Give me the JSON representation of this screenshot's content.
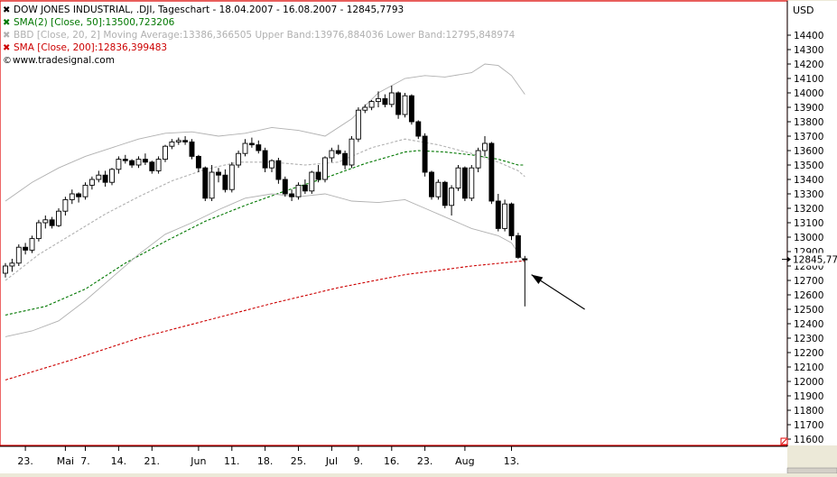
{
  "chart_data": {
    "type": "candlestick",
    "title": "DOW JONES INDUSTRIAL, .DJI, Tageschart - 18.04.2007 - 16.08.2007 - 12845,7793",
    "currency": "USD",
    "source": "www.tradesignal.com",
    "last_value_label": "12845,77",
    "y_axis": {
      "min": 11600,
      "max": 14400,
      "ticks": [
        14400,
        14300,
        14200,
        14100,
        14000,
        13900,
        13800,
        13700,
        13600,
        13500,
        13400,
        13300,
        13200,
        13100,
        13000,
        12900,
        12800,
        12700,
        12600,
        12500,
        12400,
        12300,
        12200,
        12100,
        12000,
        11900,
        11800,
        11700,
        11600
      ]
    },
    "x_axis": {
      "labels": [
        {
          "i": 3,
          "t": "23."
        },
        {
          "i": 9,
          "t": "Mai"
        },
        {
          "i": 12,
          "t": "7."
        },
        {
          "i": 17,
          "t": "14."
        },
        {
          "i": 22,
          "t": "21."
        },
        {
          "i": 29,
          "t": "Jun"
        },
        {
          "i": 34,
          "t": "11."
        },
        {
          "i": 39,
          "t": "18."
        },
        {
          "i": 44,
          "t": "25."
        },
        {
          "i": 49,
          "t": "Jul"
        },
        {
          "i": 53,
          "t": "9."
        },
        {
          "i": 58,
          "t": "16."
        },
        {
          "i": 63,
          "t": "23."
        },
        {
          "i": 69,
          "t": "Aug"
        },
        {
          "i": 76,
          "t": "13."
        }
      ]
    },
    "legend": [
      {
        "text": "DOW JONES INDUSTRIAL, .DJI, Tageschart - 18.04.2007 - 16.08.2007 - 12845,7793",
        "color": "#000000"
      },
      {
        "text": "SMA(2) [Close, 50]:13500,723206",
        "color": "#007700"
      },
      {
        "text": "BBD [Close, 20, 2] Moving Average:13386,366505 Upper Band:13976,884036 Lower Band:12795,848974",
        "color": "#b0b0b0"
      },
      {
        "text": "SMA [Close, 200]:12836,399483",
        "color": "#cc0000"
      },
      {
        "text": "www.tradesignal.com",
        "color": "#000000"
      }
    ],
    "series": [
      {
        "name": "DOW JONES INDUSTRIAL",
        "kind": "ohlc",
        "ohlc": [
          [
            12750,
            12820,
            12720,
            12800
          ],
          [
            12800,
            12850,
            12760,
            12820
          ],
          [
            12820,
            12950,
            12800,
            12930
          ],
          [
            12930,
            12960,
            12880,
            12910
          ],
          [
            12910,
            13010,
            12890,
            12990
          ],
          [
            12990,
            13120,
            12970,
            13100
          ],
          [
            13100,
            13150,
            13060,
            13120
          ],
          [
            13120,
            13140,
            13060,
            13080
          ],
          [
            13080,
            13200,
            13070,
            13180
          ],
          [
            13180,
            13280,
            13150,
            13260
          ],
          [
            13260,
            13330,
            13230,
            13300
          ],
          [
            13300,
            13310,
            13240,
            13280
          ],
          [
            13280,
            13380,
            13260,
            13360
          ],
          [
            13360,
            13420,
            13330,
            13400
          ],
          [
            13400,
            13460,
            13380,
            13430
          ],
          [
            13430,
            13460,
            13350,
            13380
          ],
          [
            13380,
            13480,
            13360,
            13470
          ],
          [
            13470,
            13560,
            13440,
            13540
          ],
          [
            13540,
            13570,
            13510,
            13530
          ],
          [
            13530,
            13540,
            13480,
            13500
          ],
          [
            13500,
            13560,
            13480,
            13540
          ],
          [
            13540,
            13580,
            13500,
            13520
          ],
          [
            13520,
            13530,
            13440,
            13460
          ],
          [
            13460,
            13560,
            13440,
            13540
          ],
          [
            13540,
            13640,
            13520,
            13630
          ],
          [
            13630,
            13680,
            13610,
            13660
          ],
          [
            13660,
            13690,
            13640,
            13670
          ],
          [
            13670,
            13700,
            13640,
            13660
          ],
          [
            13660,
            13680,
            13540,
            13560
          ],
          [
            13560,
            13570,
            13450,
            13480
          ],
          [
            13480,
            13490,
            13250,
            13270
          ],
          [
            13270,
            13500,
            13250,
            13450
          ],
          [
            13450,
            13480,
            13380,
            13430
          ],
          [
            13430,
            13470,
            13310,
            13330
          ],
          [
            13330,
            13520,
            13310,
            13500
          ],
          [
            13500,
            13600,
            13480,
            13580
          ],
          [
            13580,
            13680,
            13560,
            13650
          ],
          [
            13650,
            13690,
            13620,
            13640
          ],
          [
            13640,
            13670,
            13580,
            13600
          ],
          [
            13600,
            13620,
            13450,
            13480
          ],
          [
            13480,
            13540,
            13450,
            13530
          ],
          [
            13530,
            13550,
            13370,
            13400
          ],
          [
            13400,
            13420,
            13280,
            13300
          ],
          [
            13300,
            13330,
            13250,
            13280
          ],
          [
            13280,
            13380,
            13260,
            13360
          ],
          [
            13360,
            13400,
            13300,
            13320
          ],
          [
            13320,
            13460,
            13300,
            13450
          ],
          [
            13450,
            13500,
            13380,
            13400
          ],
          [
            13400,
            13560,
            13380,
            13550
          ],
          [
            13550,
            13620,
            13520,
            13600
          ],
          [
            13600,
            13640,
            13570,
            13580
          ],
          [
            13580,
            13600,
            13470,
            13500
          ],
          [
            13500,
            13700,
            13480,
            13680
          ],
          [
            13680,
            13900,
            13660,
            13880
          ],
          [
            13880,
            13920,
            13860,
            13900
          ],
          [
            13900,
            13950,
            13880,
            13940
          ],
          [
            13940,
            14010,
            13900,
            13960
          ],
          [
            13960,
            13990,
            13900,
            13920
          ],
          [
            13920,
            14050,
            13900,
            14000
          ],
          [
            14000,
            14010,
            13820,
            13850
          ],
          [
            13850,
            14000,
            13830,
            13980
          ],
          [
            13980,
            13990,
            13780,
            13800
          ],
          [
            13800,
            13810,
            13680,
            13700
          ],
          [
            13700,
            13720,
            13420,
            13450
          ],
          [
            13450,
            13460,
            13260,
            13280
          ],
          [
            13280,
            13400,
            13260,
            13380
          ],
          [
            13380,
            13390,
            13200,
            13220
          ],
          [
            13220,
            13360,
            13150,
            13340
          ],
          [
            13340,
            13500,
            13320,
            13480
          ],
          [
            13480,
            13490,
            13250,
            13270
          ],
          [
            13270,
            13500,
            13250,
            13480
          ],
          [
            13480,
            13620,
            13450,
            13600
          ],
          [
            13600,
            13700,
            13560,
            13650
          ],
          [
            13650,
            13660,
            13230,
            13250
          ],
          [
            13250,
            13300,
            13040,
            13060
          ],
          [
            13060,
            13260,
            13040,
            13230
          ],
          [
            13230,
            13240,
            12980,
            13010
          ],
          [
            13010,
            13030,
            12850,
            12860
          ],
          [
            12850,
            12870,
            12520,
            12846
          ]
        ]
      },
      {
        "name": "SMA(2) [Close, 50]",
        "color": "#007700",
        "style": "dashed",
        "points": [
          [
            0,
            12460
          ],
          [
            6,
            12520
          ],
          [
            12,
            12640
          ],
          [
            18,
            12820
          ],
          [
            24,
            12970
          ],
          [
            30,
            13110
          ],
          [
            36,
            13220
          ],
          [
            42,
            13320
          ],
          [
            48,
            13410
          ],
          [
            54,
            13510
          ],
          [
            60,
            13590
          ],
          [
            62,
            13600
          ],
          [
            66,
            13590
          ],
          [
            70,
            13570
          ],
          [
            74,
            13540
          ],
          [
            77,
            13500
          ],
          [
            78,
            13500
          ]
        ]
      },
      {
        "name": "BBD Upper Band",
        "color": "#b0b0b0",
        "style": "solid",
        "points": [
          [
            0,
            13250
          ],
          [
            4,
            13380
          ],
          [
            8,
            13480
          ],
          [
            12,
            13560
          ],
          [
            16,
            13620
          ],
          [
            20,
            13680
          ],
          [
            24,
            13720
          ],
          [
            28,
            13730
          ],
          [
            32,
            13700
          ],
          [
            36,
            13720
          ],
          [
            40,
            13760
          ],
          [
            44,
            13740
          ],
          [
            48,
            13700
          ],
          [
            52,
            13820
          ],
          [
            56,
            14000
          ],
          [
            60,
            14100
          ],
          [
            63,
            14120
          ],
          [
            66,
            14110
          ],
          [
            70,
            14140
          ],
          [
            72,
            14200
          ],
          [
            74,
            14190
          ],
          [
            76,
            14120
          ],
          [
            78,
            13990
          ]
        ]
      },
      {
        "name": "BBD Moving Average",
        "color": "#b0b0b0",
        "style": "dashed",
        "points": [
          [
            0,
            12700
          ],
          [
            5,
            12880
          ],
          [
            10,
            13020
          ],
          [
            15,
            13160
          ],
          [
            20,
            13280
          ],
          [
            25,
            13390
          ],
          [
            30,
            13470
          ],
          [
            35,
            13520
          ],
          [
            40,
            13520
          ],
          [
            45,
            13500
          ],
          [
            50,
            13520
          ],
          [
            55,
            13620
          ],
          [
            60,
            13680
          ],
          [
            65,
            13640
          ],
          [
            70,
            13580
          ],
          [
            74,
            13520
          ],
          [
            77,
            13460
          ],
          [
            78,
            13420
          ]
        ]
      },
      {
        "name": "BBD Lower Band",
        "color": "#b0b0b0",
        "style": "solid",
        "points": [
          [
            0,
            12310
          ],
          [
            4,
            12350
          ],
          [
            8,
            12420
          ],
          [
            12,
            12560
          ],
          [
            16,
            12720
          ],
          [
            20,
            12880
          ],
          [
            24,
            13020
          ],
          [
            28,
            13100
          ],
          [
            32,
            13190
          ],
          [
            36,
            13270
          ],
          [
            40,
            13300
          ],
          [
            44,
            13280
          ],
          [
            48,
            13300
          ],
          [
            52,
            13250
          ],
          [
            56,
            13240
          ],
          [
            60,
            13260
          ],
          [
            63,
            13200
          ],
          [
            66,
            13140
          ],
          [
            70,
            13060
          ],
          [
            74,
            13010
          ],
          [
            76,
            12960
          ],
          [
            78,
            12820
          ]
        ]
      },
      {
        "name": "SMA [Close, 200]",
        "color": "#cc0000",
        "style": "dashed",
        "points": [
          [
            0,
            12010
          ],
          [
            10,
            12150
          ],
          [
            20,
            12300
          ],
          [
            30,
            12420
          ],
          [
            40,
            12540
          ],
          [
            50,
            12650
          ],
          [
            60,
            12740
          ],
          [
            70,
            12800
          ],
          [
            78,
            12836
          ]
        ]
      }
    ],
    "annotation": {
      "type": "arrow",
      "from_i": 87,
      "from_v": 12500,
      "to_i": 79,
      "to_v": 12740
    }
  }
}
